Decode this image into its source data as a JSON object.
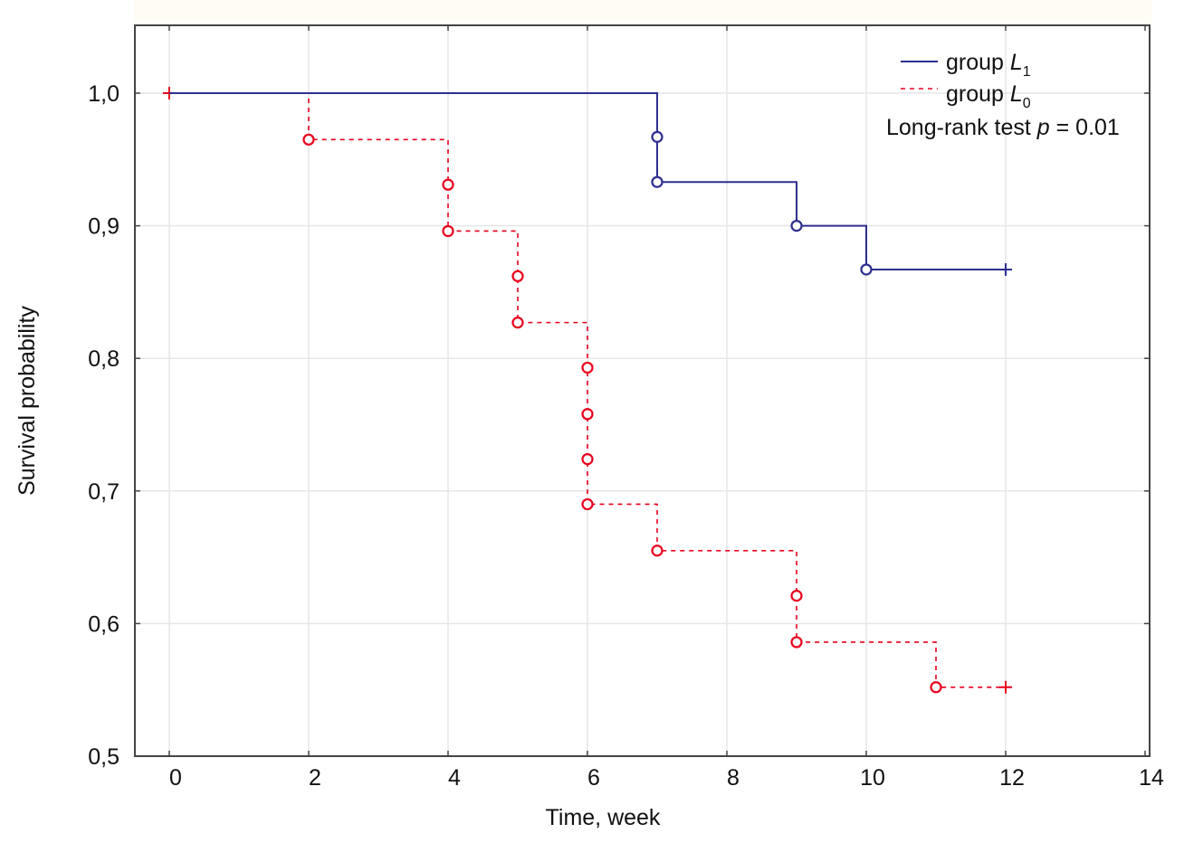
{
  "chart_data": {
    "type": "line",
    "subtype": "kaplan-meier-step",
    "title": "",
    "xlabel": "Time, week",
    "ylabel": "Survival probability",
    "xlim": [
      -0.5,
      14
    ],
    "ylim": [
      0.5,
      1.05
    ],
    "x_ticks": [
      0,
      2,
      4,
      6,
      8,
      10,
      12,
      14
    ],
    "x_tick_labels": [
      "0",
      "2",
      "4",
      "6",
      "8",
      "10",
      "12",
      "14"
    ],
    "y_ticks": [
      0.5,
      0.6,
      0.7,
      0.8,
      0.9,
      1.0
    ],
    "y_tick_labels": [
      "0,5",
      "0,6",
      "0,7",
      "0,8",
      "0,9",
      "1,0"
    ],
    "grid": true,
    "legend_position": "top-right",
    "annotation": {
      "prefix": "Long-rank test ",
      "var": "p",
      "suffix": " = 0.01"
    },
    "series": [
      {
        "name": "group L1",
        "legend_main": "group ",
        "legend_italic": "L",
        "legend_sub": "1",
        "color": "#2e2e8f",
        "style": "solid",
        "steps": [
          [
            0,
            1.0
          ],
          [
            7,
            0.933
          ],
          [
            9,
            0.9
          ],
          [
            10,
            0.867
          ]
        ],
        "end_x": 12,
        "events": [
          [
            7,
            0.967
          ],
          [
            7,
            0.933
          ],
          [
            9,
            0.9
          ],
          [
            10,
            0.867
          ]
        ],
        "censored": [
          [
            12,
            0.867
          ]
        ]
      },
      {
        "name": "group L0",
        "legend_main": "group ",
        "legend_italic": "L",
        "legend_sub": "0",
        "color": "#e8001c",
        "style": "dashed",
        "steps": [
          [
            0,
            1.0
          ],
          [
            2,
            0.965
          ],
          [
            4,
            0.896
          ],
          [
            5,
            0.827
          ],
          [
            6,
            0.69
          ],
          [
            7,
            0.655
          ],
          [
            9,
            0.586
          ],
          [
            11,
            0.552
          ]
        ],
        "end_x": 12,
        "events": [
          [
            2,
            0.965
          ],
          [
            4,
            0.931
          ],
          [
            4,
            0.896
          ],
          [
            5,
            0.862
          ],
          [
            5,
            0.827
          ],
          [
            6,
            0.793
          ],
          [
            6,
            0.758
          ],
          [
            6,
            0.724
          ],
          [
            6,
            0.69
          ],
          [
            7,
            0.655
          ],
          [
            9,
            0.621
          ],
          [
            9,
            0.586
          ],
          [
            11,
            0.552
          ]
        ],
        "censored": [
          [
            0,
            1.0
          ],
          [
            12,
            0.552
          ]
        ]
      }
    ]
  }
}
